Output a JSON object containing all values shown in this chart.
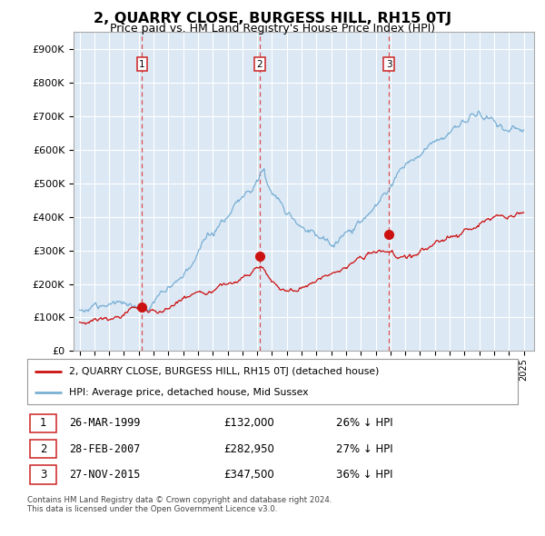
{
  "title": "2, QUARRY CLOSE, BURGESS HILL, RH15 0TJ",
  "subtitle": "Price paid vs. HM Land Registry's House Price Index (HPI)",
  "background_color": "#ffffff",
  "plot_bg_color": "#dce9f5",
  "grid_color": "#ffffff",
  "hpi_color": "#7aafd4",
  "price_color": "#cc1111",
  "ylim": [
    0,
    950000
  ],
  "yticks": [
    0,
    100000,
    200000,
    300000,
    400000,
    500000,
    600000,
    700000,
    800000,
    900000
  ],
  "ytick_labels": [
    "£0",
    "£100K",
    "£200K",
    "£300K",
    "£400K",
    "£500K",
    "£600K",
    "£700K",
    "£800K",
    "£900K"
  ],
  "sales": [
    {
      "label": "1",
      "x": 1999.23,
      "price": 132000
    },
    {
      "label": "2",
      "x": 2007.16,
      "price": 282950
    },
    {
      "label": "3",
      "x": 2015.91,
      "price": 347500
    }
  ],
  "legend_label_price": "2, QUARRY CLOSE, BURGESS HILL, RH15 0TJ (detached house)",
  "legend_label_hpi": "HPI: Average price, detached house, Mid Sussex",
  "footer1": "Contains HM Land Registry data © Crown copyright and database right 2024.",
  "footer2": "This data is licensed under the Open Government Licence v3.0.",
  "table_rows": [
    {
      "num": "1",
      "date": "26-MAR-1999",
      "price": "£132,000",
      "pct": "26% ↓ HPI"
    },
    {
      "num": "2",
      "date": "28-FEB-2007",
      "price": "£282,950",
      "pct": "27% ↓ HPI"
    },
    {
      "num": "3",
      "date": "27-NOV-2015",
      "price": "£347,500",
      "pct": "36% ↓ HPI"
    }
  ]
}
